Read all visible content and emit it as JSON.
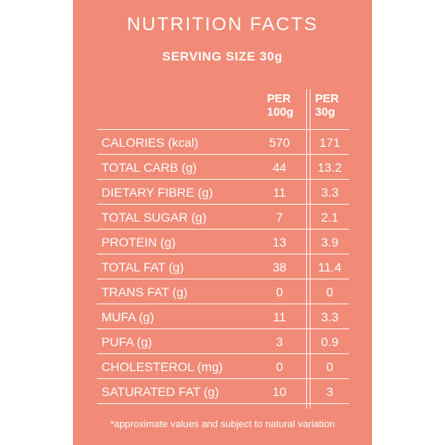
{
  "title": "NUTRITION FACTS",
  "serving_size": "SERVING SIZE 30g",
  "columns": {
    "per100_line1": "PER",
    "per100_line2": "100g",
    "per30_line1": "PER",
    "per30_line2": "30g"
  },
  "rows": [
    {
      "label": "CALORIES (kcal)",
      "per100": "570",
      "per30": "171"
    },
    {
      "label": "TOTAL CARB (g)",
      "per100": "44",
      "per30": "13.2"
    },
    {
      "label": "DIETARY FIBRE (g)",
      "per100": "11",
      "per30": "3.3"
    },
    {
      "label": "TOTAL SUGAR (g)",
      "per100": "7",
      "per30": "2.1"
    },
    {
      "label": "PROTEIN (g)",
      "per100": "13",
      "per30": "3.9"
    },
    {
      "label": "TOTAL FAT (g)",
      "per100": "38",
      "per30": "11.4"
    },
    {
      "label": "TRANS FAT (g)",
      "per100": "0",
      "per30": "0"
    },
    {
      "label": "MUFA (g)",
      "per100": "11",
      "per30": "3.3"
    },
    {
      "label": "PUFA (g)",
      "per100": "3",
      "per30": "0.9"
    },
    {
      "label": "CHOLESTEROL (mg)",
      "per100": "0",
      "per30": "0"
    },
    {
      "label": "SATURATED FAT (g)",
      "per100": "10",
      "per30": "3"
    }
  ],
  "footnote": "*approximate values and subject to natural variation",
  "colors": {
    "panel_background": "#f18a76",
    "text": "#ffffff",
    "page_background": "#ffffff"
  }
}
